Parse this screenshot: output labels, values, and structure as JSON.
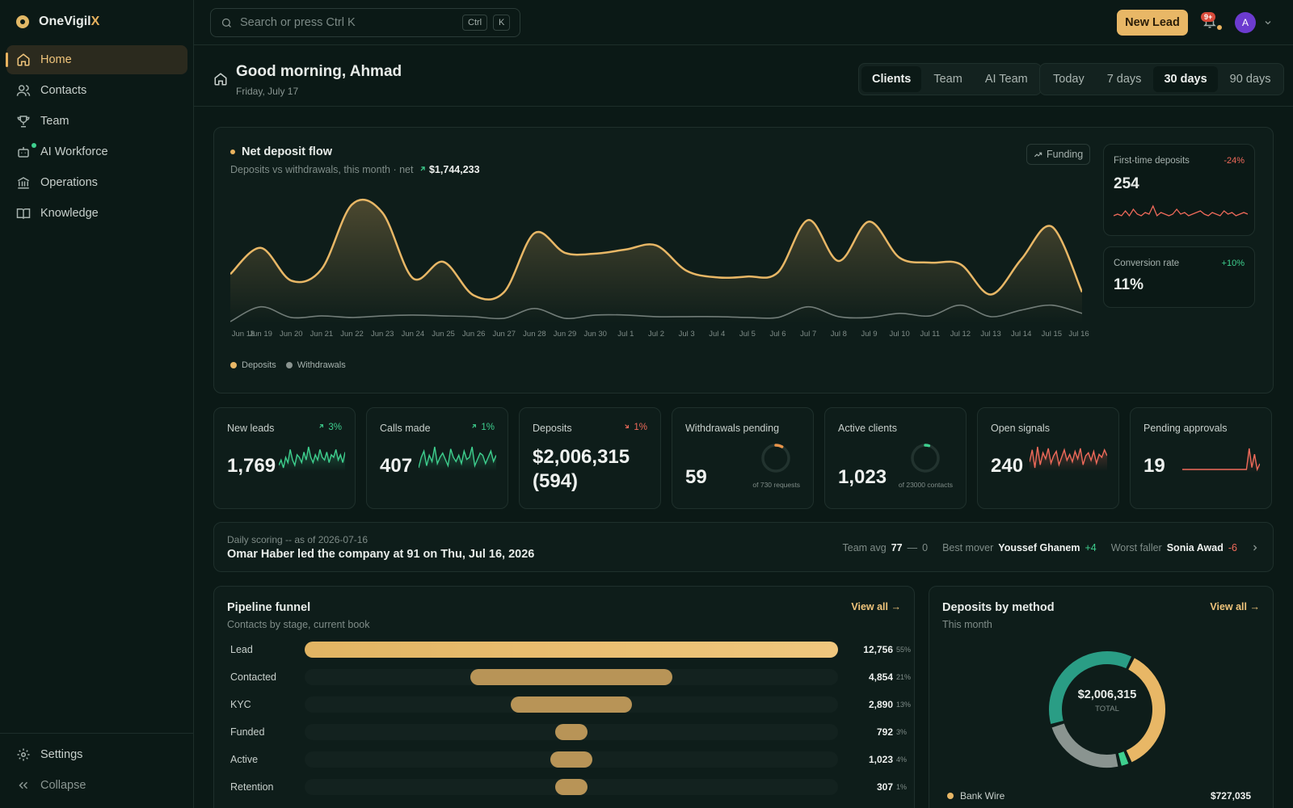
{
  "app": {
    "name_main": "OneVigil",
    "name_accent": "X"
  },
  "sidebar": {
    "items": [
      {
        "label": "Home",
        "icon": "home-icon"
      },
      {
        "label": "Contacts",
        "icon": "users-icon"
      },
      {
        "label": "Team",
        "icon": "trophy-icon"
      },
      {
        "label": "AI Workforce",
        "icon": "robot-icon"
      },
      {
        "label": "Operations",
        "icon": "bank-icon"
      },
      {
        "label": "Knowledge",
        "icon": "book-icon"
      }
    ],
    "settings": "Settings",
    "collapse": "Collapse"
  },
  "topbar": {
    "search_placeholder": "Search or press Ctrl K",
    "kbd1": "Ctrl",
    "kbd2": "K",
    "new_lead": "New Lead",
    "notif_count": "9+",
    "avatar_initial": "A"
  },
  "header": {
    "greeting": "Good morning, Ahmad",
    "date": "Friday, July 17",
    "view_tabs": [
      "Clients",
      "Team",
      "AI Team"
    ],
    "range_tabs": [
      "Today",
      "7 days",
      "30 days",
      "90 days"
    ]
  },
  "flow": {
    "title": "Net deposit flow",
    "subtitle": "Deposits vs withdrawals, this month",
    "net_label": "net",
    "net_value": "$1,744,233",
    "funding_btn": "Funding",
    "legend_deposits": "Deposits",
    "legend_withdrawals": "Withdrawals"
  },
  "chart_data": {
    "type": "area",
    "title": "Net deposit flow",
    "categories": [
      "Jun 18",
      "Jun 19",
      "Jun 20",
      "Jun 21",
      "Jun 22",
      "Jun 23",
      "Jun 24",
      "Jun 25",
      "Jun 26",
      "Jun 27",
      "Jun 28",
      "Jun 29",
      "Jun 30",
      "Jul 1",
      "Jul 2",
      "Jul 3",
      "Jul 4",
      "Jul 5",
      "Jul 6",
      "Jul 7",
      "Jul 8",
      "Jul 9",
      "Jul 10",
      "Jul 11",
      "Jul 12",
      "Jul 13",
      "Jul 14",
      "Jul 15",
      "Jul 16"
    ],
    "series": [
      {
        "name": "Deposits",
        "color": "#e8b766",
        "values": [
          60,
          92,
          52,
          66,
          145,
          135,
          55,
          75,
          34,
          38,
          110,
          86,
          85,
          90,
          95,
          64,
          56,
          57,
          62,
          126,
          76,
          124,
          80,
          74,
          72,
          35,
          78,
          118,
          38
        ]
      },
      {
        "name": "Withdrawals",
        "color": "#8a9490",
        "values": [
          2,
          20,
          7,
          9,
          7,
          9,
          10,
          9,
          8,
          6,
          18,
          6,
          10,
          10,
          8,
          8,
          8,
          7,
          7,
          20,
          8,
          7,
          12,
          9,
          22,
          8,
          16,
          22,
          12
        ]
      }
    ],
    "legend": "bottom-left"
  },
  "side_stats": [
    {
      "title": "First-time deposits",
      "delta": "-24%",
      "value": "254",
      "trend": [
        5,
        6,
        5,
        8,
        5,
        9,
        6,
        5,
        7,
        6,
        11,
        5,
        7,
        6,
        5,
        6,
        9,
        6,
        7,
        5,
        6,
        7,
        8,
        6,
        5,
        7,
        6,
        5,
        8,
        6,
        7,
        5,
        6,
        7,
        6
      ]
    },
    {
      "title": "Conversion rate",
      "delta": "+10%",
      "value": "11%"
    }
  ],
  "kpis": [
    {
      "title": "New leads",
      "delta": "3%",
      "value": "1,769",
      "dir": "up",
      "spark": [
        6,
        8,
        5,
        9,
        7,
        12,
        8,
        6,
        10,
        9,
        7,
        11,
        8,
        13,
        9,
        7,
        10,
        8,
        12,
        9,
        8,
        11,
        7,
        10,
        9,
        12,
        8,
        10,
        7,
        11
      ]
    },
    {
      "title": "Calls made",
      "delta": "1%",
      "value": "407",
      "dir": "up",
      "spark": [
        4,
        9,
        12,
        5,
        10,
        7,
        14,
        6,
        9,
        11,
        8,
        5,
        13,
        9,
        7,
        10,
        6,
        12,
        8,
        9,
        14,
        5,
        8,
        11,
        10,
        6,
        9,
        12,
        7,
        10
      ]
    },
    {
      "title": "Deposits",
      "delta": "1%",
      "value": "$2,006,315 (594)",
      "dir": "down"
    },
    {
      "title": "Withdrawals pending",
      "value": "59",
      "sub": "of 730 requests",
      "ratio": 0.08
    },
    {
      "title": "Active clients",
      "value": "1,023",
      "sub": "of 23000 contacts",
      "ratio": 0.045
    },
    {
      "title": "Open signals",
      "value": "240",
      "spark": [
        8,
        16,
        4,
        18,
        6,
        14,
        10,
        17,
        7,
        12,
        15,
        6,
        11,
        16,
        9,
        13,
        8,
        15,
        10,
        17,
        6,
        12,
        14,
        9,
        15,
        7,
        13,
        11,
        16,
        12
      ]
    },
    {
      "title": "Pending approvals",
      "value": "19",
      "spark": [
        1,
        1,
        1,
        1,
        1,
        1,
        1,
        1,
        1,
        1,
        1,
        1,
        1,
        1,
        1,
        1,
        1,
        1,
        1,
        1,
        1,
        1,
        1,
        1,
        1,
        12,
        2,
        9,
        1,
        4
      ]
    }
  ],
  "scoring": {
    "label": "Daily scoring -- as of 2026-07-16",
    "headline": "Omar Haber led the company at 91 on Thu, Jul 16, 2026",
    "team_avg_label": "Team avg",
    "team_avg": "77",
    "team_avg_delta": "0",
    "best_label": "Best mover",
    "best_name": "Youssef Ghanem",
    "best_delta": "+4",
    "worst_label": "Worst faller",
    "worst_name": "Sonia Awad",
    "worst_delta": "-6"
  },
  "funnel": {
    "title": "Pipeline funnel",
    "subtitle": "Contacts by stage, current book",
    "view_all": "View all",
    "stages": [
      {
        "label": "Lead",
        "count": "12,756",
        "pct": "55%",
        "ratio": 1.0
      },
      {
        "label": "Contacted",
        "count": "4,854",
        "pct": "21%",
        "ratio": 0.38
      },
      {
        "label": "KYC",
        "count": "2,890",
        "pct": "13%",
        "ratio": 0.227
      },
      {
        "label": "Funded",
        "count": "792",
        "pct": "3%",
        "ratio": 0.062
      },
      {
        "label": "Active",
        "count": "1,023",
        "pct": "4%",
        "ratio": 0.08
      },
      {
        "label": "Retention",
        "count": "307",
        "pct": "1%",
        "ratio": 0.04
      }
    ]
  },
  "methods": {
    "title": "Deposits by method",
    "subtitle": "This month",
    "view_all": "View all",
    "total": "$2,006,315",
    "total_label": "TOTAL",
    "slices": [
      {
        "name": "Bank Wire",
        "value": 727035,
        "color": "#e8b766"
      },
      {
        "name": "",
        "value": 60000,
        "color": "#3ecf8e"
      },
      {
        "name": "",
        "value": 480000,
        "color": "#8a9490"
      },
      {
        "name": "",
        "value": 739280,
        "color": "#2a9d85"
      }
    ],
    "legend_name": "Bank Wire",
    "legend_value": "$727,035"
  }
}
